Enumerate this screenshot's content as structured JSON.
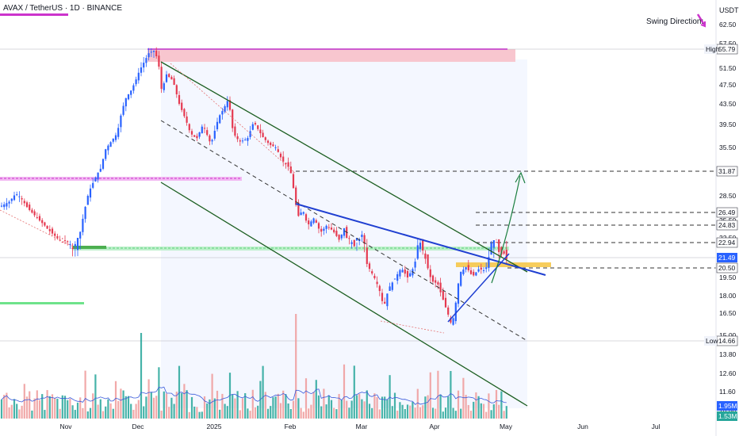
{
  "header": {
    "symbol": "AVAX / TetherUS · 1D · BINANCE",
    "currency": "USDT",
    "swing_label": "Swing Direction:"
  },
  "colors": {
    "up": "#2962ff",
    "down": "#e53950",
    "vol_up": "#26a69a",
    "vol_down": "#ef9a9a",
    "channel": "#1b5e20",
    "trend": "#1f3fd1",
    "arrow": "#1b7f3f",
    "zone_pink": "#f8c6cf",
    "zone_yellow": "#f6c440",
    "zone_green": "#9be3b0",
    "swing_arrow": "#cc33cc"
  },
  "chart_data": {
    "type": "candlestick",
    "title": "AVAX / TetherUS · 1D · BINANCE",
    "x_ticks": [
      "Nov",
      "Dec",
      "2025",
      "Feb",
      "Mar",
      "Apr",
      "May",
      "Jun",
      "Jul"
    ],
    "y_ticks": [
      62.5,
      57.5,
      51.5,
      47.5,
      43.5,
      39.5,
      35.5,
      31.5,
      28.5,
      25.5,
      22.5,
      19.5,
      18.0,
      16.5,
      15.0,
      13.8,
      12.6,
      11.6,
      10.6
    ],
    "price_path": [
      [
        0,
        27.2
      ],
      [
        12,
        27.8
      ],
      [
        20,
        28.8
      ],
      [
        26,
        28.3
      ],
      [
        35,
        27.0
      ],
      [
        45,
        26.0
      ],
      [
        60,
        24.4
      ],
      [
        75,
        23.2
      ],
      [
        92,
        21.9
      ],
      [
        98,
        22.5
      ],
      [
        106,
        26.5
      ],
      [
        112,
        29.0
      ],
      [
        120,
        30.8
      ],
      [
        128,
        32.5
      ],
      [
        132,
        35.0
      ],
      [
        140,
        36.5
      ],
      [
        148,
        38.0
      ],
      [
        152,
        41.0
      ],
      [
        158,
        44.5
      ],
      [
        166,
        46.5
      ],
      [
        170,
        48.0
      ],
      [
        176,
        51.0
      ],
      [
        182,
        53.0
      ],
      [
        188,
        55.0
      ],
      [
        195,
        55.5
      ],
      [
        200,
        52.5
      ],
      [
        204,
        46.0
      ],
      [
        210,
        50.0
      ],
      [
        218,
        48.5
      ],
      [
        226,
        43.5
      ],
      [
        234,
        40.5
      ],
      [
        240,
        38.0
      ],
      [
        248,
        37.0
      ],
      [
        256,
        39.5
      ],
      [
        266,
        36.0
      ],
      [
        276,
        41.0
      ],
      [
        282,
        42.5
      ],
      [
        288,
        44.5
      ],
      [
        294,
        38.0
      ],
      [
        302,
        36.5
      ],
      [
        312,
        37.0
      ],
      [
        320,
        40.0
      ],
      [
        326,
        38.5
      ],
      [
        332,
        37.2
      ],
      [
        340,
        36.0
      ],
      [
        348,
        35.5
      ],
      [
        356,
        33.5
      ],
      [
        364,
        32.5
      ],
      [
        368,
        31.0
      ],
      [
        372,
        28.0
      ],
      [
        376,
        26.0
      ],
      [
        382,
        26.8
      ],
      [
        388,
        24.8
      ],
      [
        396,
        25.8
      ],
      [
        404,
        24.0
      ],
      [
        412,
        24.8
      ],
      [
        420,
        24.2
      ],
      [
        428,
        23.2
      ],
      [
        434,
        24.5
      ],
      [
        440,
        22.5
      ],
      [
        448,
        22.0
      ],
      [
        456,
        24.0
      ],
      [
        462,
        21.0
      ],
      [
        470,
        19.8
      ],
      [
        478,
        18.6
      ],
      [
        484,
        17.0
      ],
      [
        490,
        18.6
      ],
      [
        498,
        19.4
      ],
      [
        506,
        20.5
      ],
      [
        514,
        19.5
      ],
      [
        522,
        20.6
      ],
      [
        528,
        22.5
      ],
      [
        536,
        21.5
      ],
      [
        544,
        19.2
      ],
      [
        552,
        19.0
      ],
      [
        558,
        17.8
      ],
      [
        564,
        16.6
      ],
      [
        570,
        15.6
      ],
      [
        574,
        17.0
      ],
      [
        580,
        20.0
      ],
      [
        588,
        20.6
      ],
      [
        596,
        19.6
      ],
      [
        604,
        20.4
      ],
      [
        612,
        20.2
      ],
      [
        618,
        22.0
      ],
      [
        624,
        22.9
      ],
      [
        630,
        21.6
      ],
      [
        636,
        21.7
      ],
      [
        640,
        21.2
      ]
    ],
    "reference_levels": [
      {
        "name": "High",
        "value": 55.79
      },
      {
        "name": "31.87",
        "value": 31.87
      },
      {
        "name": "26.49",
        "value": 26.49
      },
      {
        "name": "24.83",
        "value": 24.83
      },
      {
        "name": "22.94",
        "value": 22.94
      },
      {
        "name": "21.49",
        "value": 21.49
      },
      {
        "name": "20.50",
        "value": 20.5
      },
      {
        "name": "Low",
        "value": 14.66
      }
    ],
    "price_tags": [
      {
        "label": "High",
        "value": "55.79"
      },
      {
        "label": "",
        "value": "31.87"
      },
      {
        "label": "",
        "value": "26.49"
      },
      {
        "label": "",
        "value": "24.83"
      },
      {
        "label": "",
        "value": "22.94"
      },
      {
        "label": "",
        "value": "21.49"
      },
      {
        "label": "",
        "value": "20.50"
      },
      {
        "label": "Low",
        "value": "14.66"
      }
    ],
    "volume_tags": [
      "1.95M",
      "1.53M"
    ],
    "grid": false
  }
}
